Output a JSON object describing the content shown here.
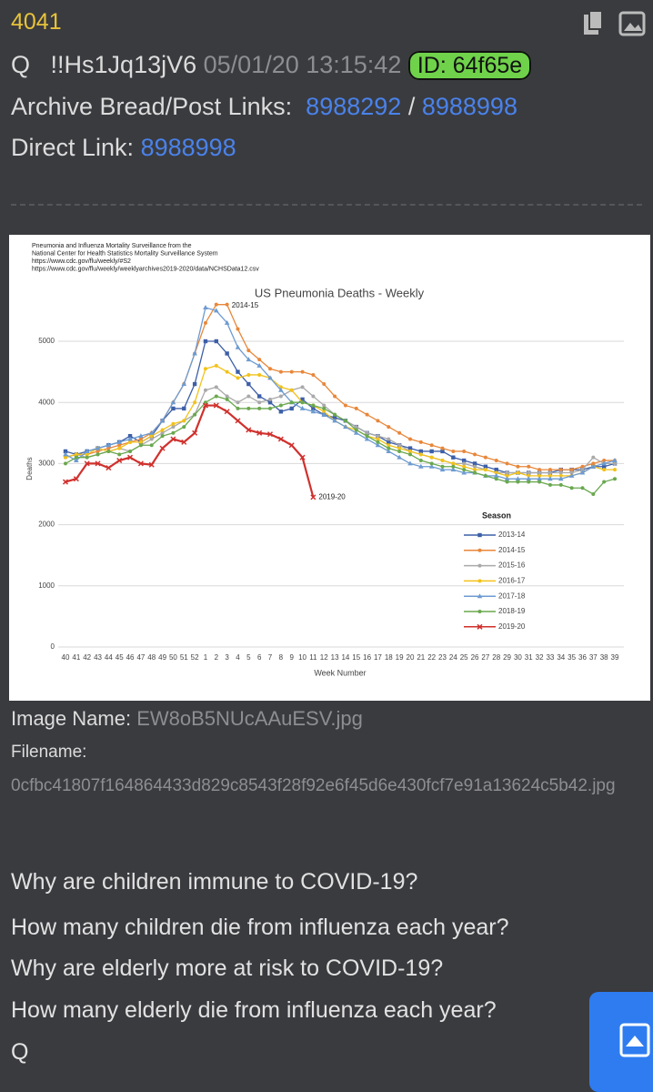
{
  "post": {
    "number": "4041",
    "author": "Q",
    "tripcode": "!!Hs1Jq13jV6",
    "datetime": "05/01/20 13:15:42",
    "id": "ID: 64f65e",
    "archive_label": "Archive Bread/Post Links:",
    "archive_links": [
      "8988292",
      "8988998"
    ],
    "archive_separator": "/",
    "direct_label": "Direct Link:",
    "direct_link": "8988998"
  },
  "chart_data": {
    "type": "line",
    "title": "US Pneumonia Deaths - Weekly",
    "source_lines": [
      "Pneumonia and Influenza Mortality Surveillance from the",
      "National Center for Health Statistics Mortality Surveillance System",
      "https://www.cdc.gov/flu/weekly/#S2",
      "https://www.cdc.gov/flu/weekly/weeklyarchives2019-2020/data/NCHSData12.csv"
    ],
    "ylabel": "Deaths",
    "xlabel": "Week Number",
    "categories": [
      "40",
      "41",
      "42",
      "43",
      "44",
      "45",
      "46",
      "47",
      "48",
      "49",
      "50",
      "51",
      "52",
      "1",
      "2",
      "3",
      "4",
      "5",
      "6",
      "7",
      "8",
      "9",
      "10",
      "11",
      "12",
      "13",
      "14",
      "15",
      "16",
      "17",
      "18",
      "19",
      "20",
      "21",
      "22",
      "23",
      "24",
      "25",
      "26",
      "27",
      "28",
      "29",
      "30",
      "31",
      "32",
      "33",
      "34",
      "35",
      "36",
      "37",
      "38",
      "39"
    ],
    "series": [
      {
        "name": "2013-14",
        "color": "#3d5fa8",
        "marker": "square",
        "values": [
          3200,
          3150,
          3200,
          3250,
          3300,
          3350,
          3450,
          3350,
          3450,
          3700,
          3900,
          3900,
          4300,
          5000,
          5000,
          4800,
          4500,
          4300,
          4100,
          4000,
          3850,
          3900,
          4050,
          3900,
          3800,
          3750,
          3700,
          3600,
          3500,
          3450,
          3350,
          3300,
          3250,
          3200,
          3200,
          3200,
          3100,
          3050,
          3000,
          2950,
          2900,
          2850,
          2850,
          2850,
          2850,
          2850,
          2900,
          2900,
          2900,
          2950,
          2950,
          3000
        ]
      },
      {
        "name": "2014-15",
        "color": "#e8873a",
        "marker": "circle",
        "values": [
          3100,
          3150,
          3150,
          3200,
          3250,
          3300,
          3350,
          3400,
          3500,
          3700,
          4000,
          4300,
          4800,
          5300,
          5600,
          5600,
          5200,
          4850,
          4700,
          4550,
          4500,
          4500,
          4500,
          4450,
          4300,
          4100,
          3950,
          3900,
          3800,
          3700,
          3600,
          3500,
          3400,
          3350,
          3300,
          3250,
          3200,
          3200,
          3150,
          3100,
          3050,
          3000,
          2950,
          2950,
          2900,
          2900,
          2900,
          2900,
          2950,
          3000,
          3050,
          3050
        ]
      },
      {
        "name": "2015-16",
        "color": "#a9a9a9",
        "marker": "circle",
        "values": [
          3100,
          3150,
          3100,
          3150,
          3200,
          3250,
          3200,
          3300,
          3400,
          3500,
          3600,
          3700,
          3800,
          4200,
          4250,
          4100,
          4000,
          4100,
          4000,
          4050,
          4100,
          4200,
          4250,
          4100,
          3950,
          3800,
          3700,
          3600,
          3500,
          3450,
          3400,
          3300,
          3200,
          3150,
          3100,
          3050,
          3000,
          3000,
          2950,
          2900,
          2850,
          2850,
          2850,
          2850,
          2850,
          2850,
          2850,
          2850,
          2900,
          3100,
          3000,
          3000
        ]
      },
      {
        "name": "2016-17",
        "color": "#f2c21b",
        "marker": "circle",
        "values": [
          3100,
          3150,
          3150,
          3250,
          3200,
          3250,
          3350,
          3350,
          3450,
          3550,
          3650,
          3700,
          4000,
          4550,
          4600,
          4500,
          4400,
          4450,
          4450,
          4400,
          4250,
          4200,
          4000,
          3950,
          3850,
          3700,
          3600,
          3550,
          3450,
          3400,
          3300,
          3250,
          3200,
          3150,
          3100,
          3050,
          3000,
          2950,
          2900,
          2900,
          2850,
          2800,
          2850,
          2800,
          2800,
          2800,
          2800,
          2800,
          2850,
          2950,
          2900,
          2900
        ]
      },
      {
        "name": "2017-18",
        "color": "#6d9bd1",
        "marker": "triangle",
        "values": [
          3150,
          3050,
          3200,
          3250,
          3300,
          3350,
          3400,
          3450,
          3500,
          3700,
          4000,
          4300,
          4800,
          5550,
          5500,
          5300,
          4900,
          4700,
          4600,
          4400,
          4200,
          4000,
          3900,
          3850,
          3800,
          3700,
          3600,
          3500,
          3400,
          3300,
          3200,
          3100,
          3000,
          2950,
          2950,
          2900,
          2900,
          2850,
          2850,
          2800,
          2800,
          2750,
          2750,
          2750,
          2750,
          2750,
          2750,
          2800,
          2850,
          2950,
          3000,
          3050
        ]
      },
      {
        "name": "2018-19",
        "color": "#6aa84f",
        "marker": "circle",
        "values": [
          3000,
          3100,
          3100,
          3150,
          3200,
          3150,
          3200,
          3300,
          3300,
          3450,
          3500,
          3600,
          3800,
          4000,
          4100,
          4050,
          3900,
          3900,
          3900,
          3900,
          3950,
          4000,
          4000,
          3950,
          3900,
          3800,
          3700,
          3550,
          3450,
          3350,
          3250,
          3200,
          3150,
          3050,
          3000,
          2950,
          2950,
          2900,
          2850,
          2800,
          2750,
          2700,
          2700,
          2700,
          2700,
          2650,
          2650,
          2600,
          2600,
          2500,
          2700,
          2750
        ]
      },
      {
        "name": "2019-20",
        "color": "#d0312d",
        "marker": "x",
        "values": [
          2700,
          2750,
          3000,
          3000,
          2930,
          3050,
          3100,
          3000,
          2980,
          3250,
          3400,
          3350,
          3500,
          3950,
          3950,
          3850,
          3700,
          3550,
          3500,
          3480,
          3400,
          3300,
          3100,
          2450,
          null,
          null,
          null,
          null,
          null,
          null,
          null,
          null,
          null,
          null,
          null,
          null,
          null,
          null,
          null,
          null,
          null,
          null,
          null,
          null,
          null,
          null,
          null,
          null,
          null,
          null,
          null,
          null
        ]
      }
    ],
    "annotations": [
      "2014-15",
      "2019-20"
    ],
    "legend_title": "Season",
    "legend": "right",
    "ylim": [
      0,
      5500
    ],
    "yticks": [
      0,
      1000,
      2000,
      3000,
      4000,
      5000
    ],
    "grid": true
  },
  "attachment": {
    "image_name_label": "Image Name:",
    "image_name": "EW8oB5NUcAAuESV.jpg",
    "filename_label": "Filename:",
    "filename": "0cfbc41807f164864433d829c8543f28f92e6f45d6e430fcf7e91a13624c5b42.jpg"
  },
  "message": {
    "lines": [
      "Why are children immune to COVID-19?",
      "How many children die from influenza each year?",
      "Why are elderly more at risk to COVID-19?",
      "How many elderly die from influenza each year?"
    ],
    "signature": "Q"
  }
}
